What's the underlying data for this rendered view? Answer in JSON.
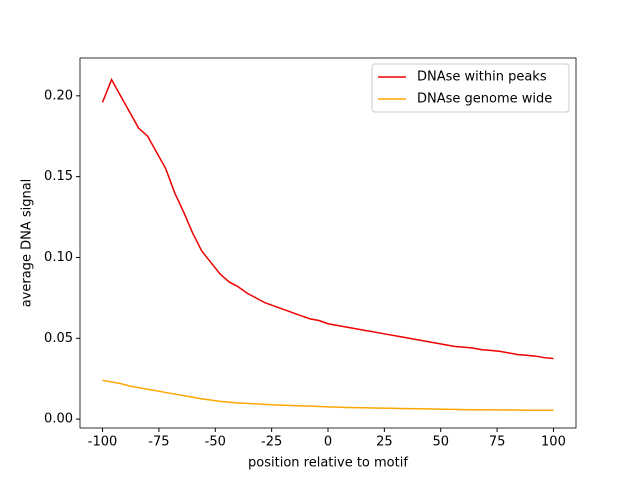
{
  "chart_data": {
    "type": "line",
    "xlabel": "position relative to motif",
    "ylabel": "average DNA signal",
    "x": [
      -100,
      -96,
      -92,
      -88,
      -84,
      -80,
      -76,
      -72,
      -68,
      -64,
      -60,
      -56,
      -52,
      -48,
      -44,
      -40,
      -36,
      -32,
      -28,
      -24,
      -20,
      -16,
      -12,
      -8,
      -4,
      0,
      4,
      8,
      12,
      16,
      20,
      24,
      28,
      32,
      36,
      40,
      44,
      48,
      52,
      56,
      60,
      64,
      68,
      72,
      76,
      80,
      84,
      88,
      92,
      96,
      100
    ],
    "series": [
      {
        "name": "DNAse within peaks",
        "color": "#ee0000",
        "values": [
          0.196,
          0.21,
          0.2,
          0.19,
          0.18,
          0.175,
          0.165,
          0.155,
          0.14,
          0.128,
          0.115,
          0.104,
          0.097,
          0.09,
          0.085,
          0.082,
          0.078,
          0.075,
          0.072,
          0.07,
          0.068,
          0.066,
          0.064,
          0.062,
          0.061,
          0.059,
          0.058,
          0.057,
          0.056,
          0.055,
          0.054,
          0.053,
          0.052,
          0.051,
          0.05,
          0.049,
          0.048,
          0.047,
          0.046,
          0.045,
          0.0445,
          0.044,
          0.043,
          0.0425,
          0.042,
          0.041,
          0.04,
          0.0395,
          0.039,
          0.038,
          0.0375
        ]
      },
      {
        "name": "DNAse genome wide",
        "color": "#ffa500",
        "values": [
          0.024,
          0.023,
          0.022,
          0.0205,
          0.0195,
          0.0185,
          0.0175,
          0.0165,
          0.0155,
          0.0145,
          0.0135,
          0.0125,
          0.0118,
          0.011,
          0.0105,
          0.01,
          0.0097,
          0.0094,
          0.0091,
          0.0088,
          0.0086,
          0.0084,
          0.0082,
          0.008,
          0.0078,
          0.0076,
          0.0074,
          0.0072,
          0.0071,
          0.007,
          0.0069,
          0.0068,
          0.0067,
          0.0066,
          0.0065,
          0.0064,
          0.0063,
          0.0062,
          0.0061,
          0.006,
          0.0059,
          0.0058,
          0.0058,
          0.0057,
          0.0057,
          0.0056,
          0.0056,
          0.0055,
          0.0055,
          0.0055,
          0.0055
        ]
      }
    ],
    "xlim": [
      -110,
      110
    ],
    "ylim": [
      -0.0055,
      0.2234
    ],
    "xticks": [
      -100,
      -75,
      -50,
      -25,
      0,
      25,
      50,
      75,
      100
    ],
    "yticks": [
      {
        "value": 0,
        "label": "0.00"
      },
      {
        "value": 0.05,
        "label": "0.05"
      },
      {
        "value": 0.1,
        "label": "0.10"
      },
      {
        "value": 0.15,
        "label": "0.15"
      },
      {
        "value": 0.2,
        "label": "0.20"
      }
    ],
    "legend": "upper right"
  }
}
